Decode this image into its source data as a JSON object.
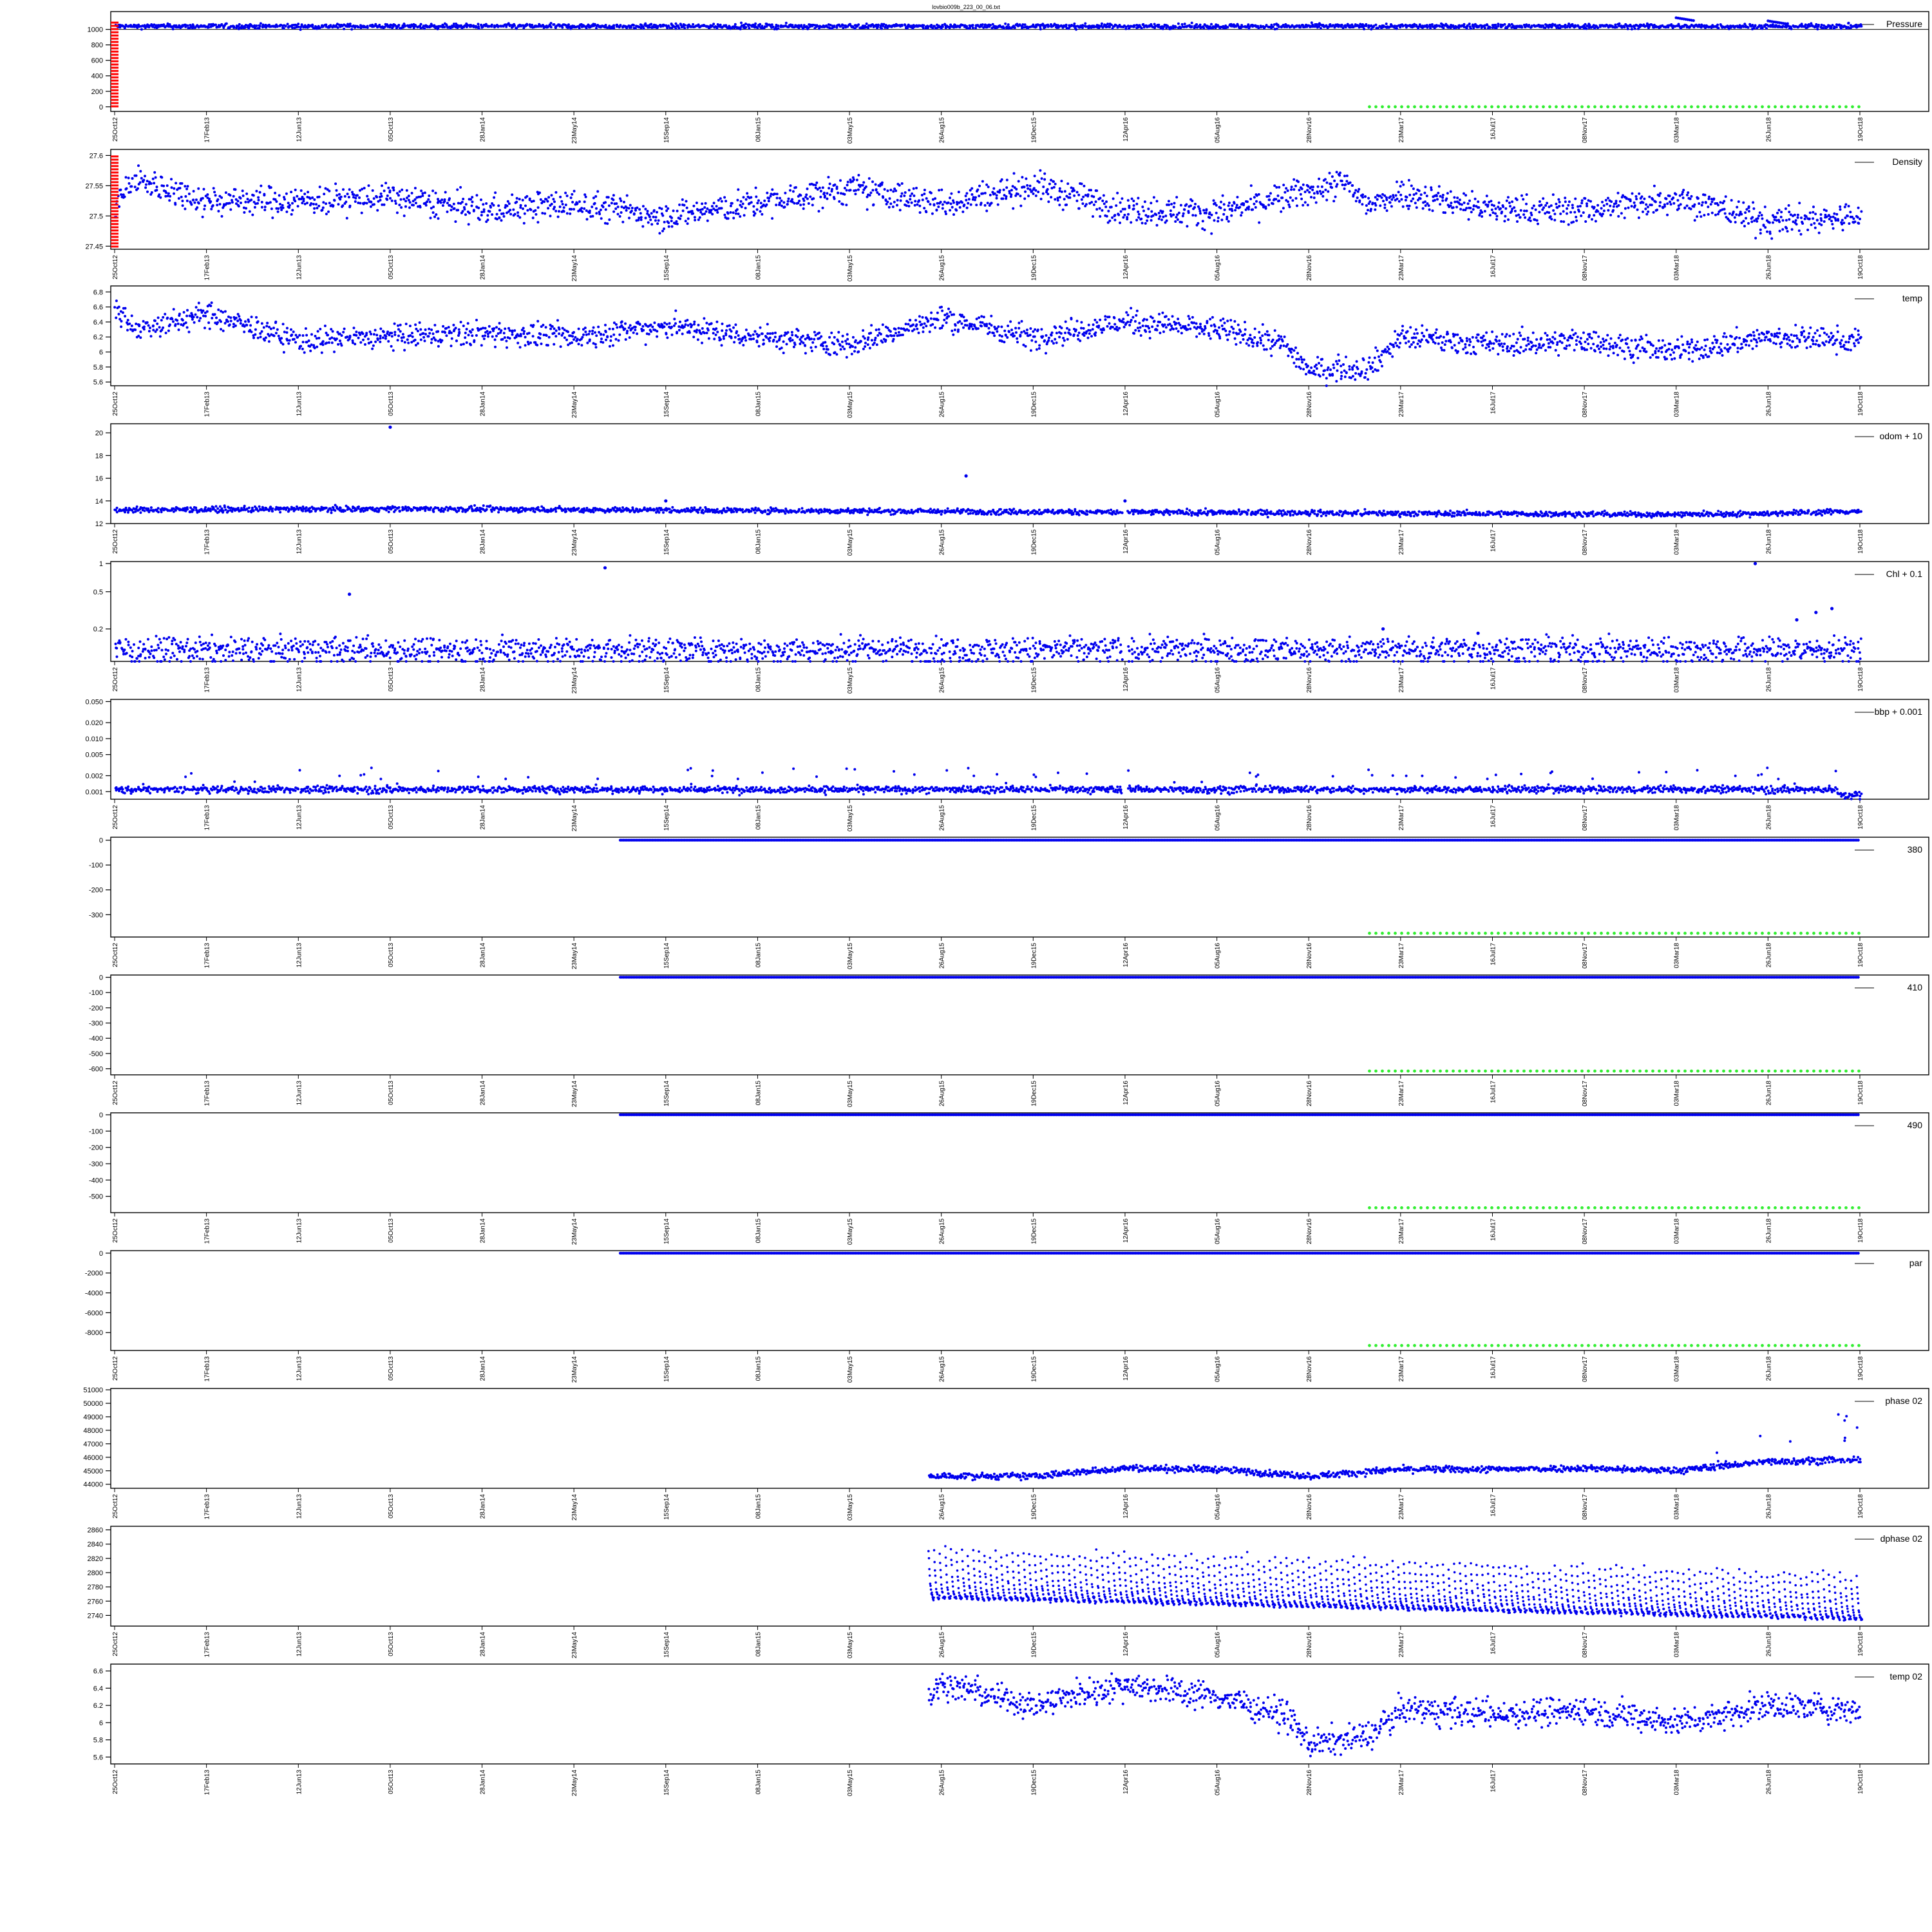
{
  "figure": {
    "title": "lovbio009b_223_00_06.txt",
    "date_ticks": [
      "25Oct12",
      "17Feb13",
      "12Jun13",
      "05Oct13",
      "28Jan14",
      "23May14",
      "15Sep14",
      "08Jan15",
      "03May15",
      "26Aug15",
      "19Dec15",
      "12Apr16",
      "05Aug16",
      "28Nov16",
      "23Mar17",
      "16Jul17",
      "08Nov17",
      "03Mar18",
      "26Jun18",
      "19Oct18"
    ]
  },
  "colors": {
    "data": "#0000ee",
    "flag_red": "#ff0000",
    "flag_green": "#33ee33",
    "ref_line": "#000000"
  },
  "chart_data": [
    {
      "type": "scatter",
      "legend": "Pressure",
      "x_range": [
        "25Oct12",
        "19Oct18"
      ],
      "ylim": [
        -60,
        1230
      ],
      "yticks": [
        0,
        200,
        400,
        600,
        800,
        1000
      ],
      "series": [
        {
          "name": "Pressure",
          "x_start": "25Oct12",
          "x_end": "19Oct18",
          "level": 1040,
          "noise": 15,
          "spikes": [
            [
              "03Mar18",
              1150
            ],
            [
              "26Jun18",
              1110
            ]
          ]
        }
      ],
      "ref_lines": [
        1000
      ],
      "red_flag": {
        "x": "25Oct12",
        "y_from": 0,
        "y_to": 1100
      },
      "green_flag": {
        "x_from": "12Feb17",
        "x_to": "19Oct18",
        "y": 0
      }
    },
    {
      "type": "scatter",
      "legend": "Density",
      "x_range": [
        "25Oct12",
        "19Oct18"
      ],
      "ylim": [
        27.445,
        27.61
      ],
      "yticks": [
        27.45,
        27.5,
        27.55,
        27.6
      ],
      "series": [
        {
          "name": "Density",
          "x_start": "25Oct12",
          "x_end": "19Oct18",
          "trend": [
            [
              "25Oct12",
              27.52
            ],
            [
              "20Nov12",
              27.56
            ],
            [
              "17Feb13",
              27.525
            ],
            [
              "12Jun13",
              27.525
            ],
            [
              "05Oct13",
              27.53
            ],
            [
              "28Jan14",
              27.51
            ],
            [
              "23May14",
              27.52
            ],
            [
              "15Sep14",
              27.5
            ],
            [
              "08Jan15",
              27.52
            ],
            [
              "03May15",
              27.545
            ],
            [
              "26Aug15",
              27.52
            ],
            [
              "19Dec15",
              27.55
            ],
            [
              "12Apr16",
              27.51
            ],
            [
              "05Aug16",
              27.505
            ],
            [
              "28Nov16",
              27.54
            ],
            [
              "10Jan17",
              27.555
            ],
            [
              "12Feb17",
              27.515
            ],
            [
              "23Mar17",
              27.54
            ],
            [
              "16Jul17",
              27.51
            ],
            [
              "08Nov17",
              27.51
            ],
            [
              "03Mar18",
              27.53
            ],
            [
              "26Jun18",
              27.49
            ],
            [
              "19Oct18",
              27.5
            ]
          ],
          "noise": 0.012
        }
      ],
      "red_flag": {
        "x": "25Oct12",
        "y_from": 27.45,
        "y_to": 27.6
      }
    },
    {
      "type": "scatter",
      "legend": "temp",
      "x_range": [
        "25Oct12",
        "19Oct18"
      ],
      "ylim": [
        5.55,
        6.88
      ],
      "yticks": [
        5.6,
        5.8,
        6.0,
        6.2,
        6.4,
        6.6,
        6.8
      ],
      "series": [
        {
          "name": "temp",
          "x_start": "25Oct12",
          "x_end": "19Oct18",
          "trend": [
            [
              "25Oct12",
              6.55
            ],
            [
              "25Nov12",
              6.3
            ],
            [
              "17Feb13",
              6.5
            ],
            [
              "12Jun13",
              6.15
            ],
            [
              "05Oct13",
              6.2
            ],
            [
              "28Jan14",
              6.25
            ],
            [
              "23May14",
              6.2
            ],
            [
              "15Sep14",
              6.35
            ],
            [
              "08Jan15",
              6.2
            ],
            [
              "03May15",
              6.1
            ],
            [
              "26Aug15",
              6.45
            ],
            [
              "19Dec15",
              6.2
            ],
            [
              "12Apr16",
              6.4
            ],
            [
              "05Aug16",
              6.3
            ],
            [
              "28Oct16",
              6.1
            ],
            [
              "28Nov16",
              5.75
            ],
            [
              "12Feb17",
              5.8
            ],
            [
              "23Mar17",
              6.2
            ],
            [
              "16Jul17",
              6.1
            ],
            [
              "08Nov17",
              6.15
            ],
            [
              "03Mar18",
              6.0
            ],
            [
              "26Jun18",
              6.2
            ],
            [
              "19Oct18",
              6.15
            ]
          ],
          "noise": 0.08
        }
      ]
    },
    {
      "type": "scatter",
      "legend": "odom + 10",
      "x_range": [
        "25Oct12",
        "19Oct18"
      ],
      "ylim": [
        12,
        20.8
      ],
      "yticks": [
        12,
        14,
        16,
        18,
        20
      ],
      "series": [
        {
          "name": "odom + 10",
          "x_start": "25Oct12",
          "x_end": "19Oct18",
          "trend": [
            [
              "25Oct12",
              13.2
            ],
            [
              "05Oct13",
              13.3
            ],
            [
              "12Apr16",
              13.0
            ],
            [
              "03Mar18",
              12.8
            ],
            [
              "26Jun18",
              12.9
            ],
            [
              "19Oct18",
              13.1
            ]
          ],
          "noise": 0.12,
          "gap": [
            "08Apr16",
            "14Apr16"
          ],
          "outliers": [
            [
              "05Oct13",
              20.5
            ],
            [
              "15Sep14",
              14.0
            ],
            [
              "26Sep15",
              16.2
            ],
            [
              "12Apr16",
              14.0
            ]
          ]
        }
      ]
    },
    {
      "type": "scatter",
      "legend": "Chl + 0.1",
      "x_range": [
        "25Oct12",
        "19Oct18"
      ],
      "ylim": [
        0.09,
        1.05
      ],
      "ylog": true,
      "yticks": [
        0.2,
        0.5,
        1.0
      ],
      "series": [
        {
          "name": "Chl + 0.1",
          "x_start": "25Oct12",
          "x_end": "19Oct18",
          "level": 0.12,
          "noise": 0.02,
          "gap": [
            "08Apr16",
            "14Apr16"
          ],
          "outliers": [
            [
              "15Aug13",
              0.47
            ],
            [
              "01Jul14",
              0.9
            ],
            [
              "01Mar17",
              0.2
            ],
            [
              "28Jun17",
              0.18
            ],
            [
              "10Jun18",
              1.0
            ],
            [
              "01Aug18",
              0.25
            ],
            [
              "25Aug18",
              0.3
            ],
            [
              "14Sep18",
              0.33
            ]
          ]
        }
      ]
    },
    {
      "type": "scatter",
      "legend": "bbp + 0.001",
      "x_range": [
        "25Oct12",
        "19Oct18"
      ],
      "ylim": [
        0.00072,
        0.055
      ],
      "ylog": true,
      "yticks": [
        0.001,
        0.002,
        0.005,
        0.01,
        0.02,
        0.05
      ],
      "ytick_labels": [
        "0.001",
        "0.002",
        "0.005",
        "0.010",
        "0.020",
        "0.050"
      ],
      "series": [
        {
          "name": "bbp + 0.001",
          "x_start": "25Oct12",
          "x_end": "19Oct18",
          "level": 0.0011,
          "noise": 8e-05,
          "gap": [
            "08Apr16",
            "14Apr16"
          ],
          "sparse_high": true,
          "tail_drop": [
            "20Sep18",
            0.00085
          ]
        }
      ]
    },
    {
      "type": "scatter",
      "legend": "380",
      "x_range": [
        "25Oct12",
        "19Oct18"
      ],
      "ylim": [
        -390,
        12
      ],
      "yticks": [
        -300,
        -200,
        -100,
        0
      ],
      "series": [
        {
          "name": "380",
          "x_start": "20Jul14",
          "x_end": "19Oct18",
          "level": 0,
          "noise": 0
        }
      ],
      "green_flag": {
        "x_from": "12Feb17",
        "x_to": "19Oct18",
        "y": -375
      }
    },
    {
      "type": "scatter",
      "legend": "410",
      "x_range": [
        "25Oct12",
        "19Oct18"
      ],
      "ylim": [
        -640,
        15
      ],
      "yticks": [
        -600,
        -500,
        -400,
        -300,
        -200,
        -100,
        0
      ],
      "series": [
        {
          "name": "410",
          "x_start": "20Jul14",
          "x_end": "19Oct18",
          "level": 0,
          "noise": 0
        }
      ],
      "green_flag": {
        "x_from": "12Feb17",
        "x_to": "19Oct18",
        "y": -615
      }
    },
    {
      "type": "scatter",
      "legend": "490",
      "x_range": [
        "25Oct12",
        "19Oct18"
      ],
      "ylim": [
        -600,
        12
      ],
      "yticks": [
        -500,
        -400,
        -300,
        -200,
        -100,
        0
      ],
      "series": [
        {
          "name": "490",
          "x_start": "20Jul14",
          "x_end": "19Oct18",
          "level": 0,
          "noise": 0
        }
      ],
      "green_flag": {
        "x_from": "12Feb17",
        "x_to": "19Oct18",
        "y": -570
      }
    },
    {
      "type": "scatter",
      "legend": "par",
      "x_range": [
        "25Oct12",
        "19Oct18"
      ],
      "ylim": [
        -9800,
        250
      ],
      "yticks": [
        -8000,
        -6000,
        -4000,
        -2000,
        0
      ],
      "series": [
        {
          "name": "par",
          "x_start": "20Jul14",
          "x_end": "19Oct18",
          "level": 0,
          "noise": 0
        }
      ],
      "green_flag": {
        "x_from": "12Feb17",
        "x_to": "19Oct18",
        "y": -9300
      }
    },
    {
      "type": "scatter",
      "legend": "phase 02",
      "x_range": [
        "25Oct12",
        "19Oct18"
      ],
      "ylim": [
        43700,
        51100
      ],
      "yticks": [
        44000,
        45000,
        46000,
        47000,
        48000,
        49000,
        50000,
        51000
      ],
      "series": [
        {
          "name": "phase 02",
          "x_start": "10Aug15",
          "x_end": "19Oct18",
          "trend": [
            [
              "10Aug15",
              44600
            ],
            [
              "19Dec15",
              44600
            ],
            [
              "12Apr16",
              45200
            ],
            [
              "05Aug16",
              45100
            ],
            [
              "28Nov16",
              44600
            ],
            [
              "23Mar17",
              45100
            ],
            [
              "16Jul17",
              45100
            ],
            [
              "08Nov17",
              45200
            ],
            [
              "03Mar18",
              45000
            ],
            [
              "26Jun18",
              45700
            ],
            [
              "19Oct18",
              45800
            ]
          ],
          "noise": 120,
          "spikes_from": "01Mar18",
          "spike_max": 50500
        }
      ]
    },
    {
      "type": "scatter",
      "legend": "dphase 02",
      "x_range": [
        "25Oct12",
        "19Oct18"
      ],
      "ylim": [
        2725,
        2865
      ],
      "yticks": [
        2740,
        2760,
        2780,
        2800,
        2820,
        2840,
        2860
      ],
      "series": [
        {
          "name": "dphase 02",
          "x_start": "10Aug15",
          "x_end": "19Oct18",
          "sawtooth": {
            "period_days": 7,
            "base_start": 2765,
            "base_end": 2735,
            "top_start": 2830,
            "top_end": 2795
          }
        }
      ]
    },
    {
      "type": "scatter",
      "legend": "temp 02",
      "x_range": [
        "25Oct12",
        "19Oct18"
      ],
      "ylim": [
        5.52,
        6.68
      ],
      "yticks": [
        5.6,
        5.8,
        6.0,
        6.2,
        6.4,
        6.6
      ],
      "series": [
        {
          "name": "temp 02",
          "x_start": "10Aug15",
          "x_end": "19Oct18",
          "trend": [
            [
              "10Aug15",
              6.3
            ],
            [
              "26Aug15",
              6.45
            ],
            [
              "19Dec15",
              6.2
            ],
            [
              "12Apr16",
              6.45
            ],
            [
              "05Aug16",
              6.3
            ],
            [
              "28Oct16",
              6.1
            ],
            [
              "28Nov16",
              5.75
            ],
            [
              "12Feb17",
              5.85
            ],
            [
              "23Mar17",
              6.15
            ],
            [
              "16Jul17",
              6.1
            ],
            [
              "08Nov17",
              6.15
            ],
            [
              "03Mar18",
              6.0
            ],
            [
              "26Jun18",
              6.2
            ],
            [
              "19Oct18",
              6.15
            ]
          ],
          "noise": 0.08
        }
      ]
    }
  ]
}
